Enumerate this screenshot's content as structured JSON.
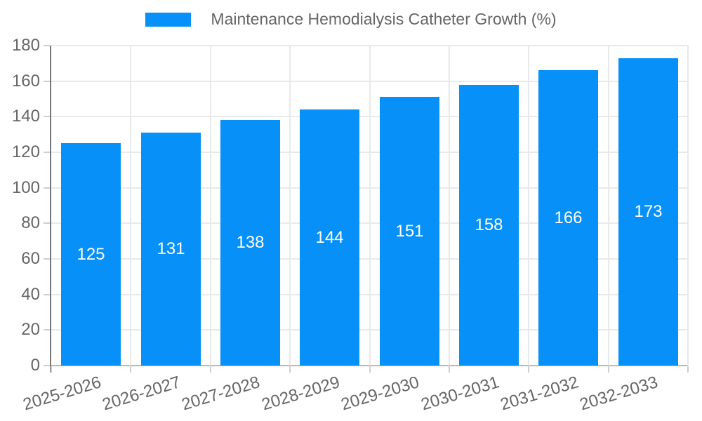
{
  "chart_data": {
    "type": "bar",
    "title": "Maintenance Hemodialysis Catheter Growth (%)",
    "legend_position": "top",
    "categories": [
      "2025-2026",
      "2026-2027",
      "2027-2028",
      "2028-2029",
      "2029-2030",
      "2030-2031",
      "2031-2032",
      "2032-2033"
    ],
    "series": [
      {
        "name": "Maintenance Hemodialysis Catheter Growth (%)",
        "values": [
          125,
          131,
          138,
          144,
          151,
          158,
          166,
          173
        ]
      }
    ],
    "value_labels": [
      "125",
      "131",
      "138",
      "144",
      "151",
      "158",
      "166",
      "173"
    ],
    "ytick_labels": [
      "0",
      "20",
      "40",
      "60",
      "80",
      "100",
      "120",
      "140",
      "160",
      "180"
    ],
    "xlabel": "",
    "ylabel": "",
    "ylim": [
      0,
      180
    ],
    "ytick_step": 20,
    "grid": true,
    "x_label_rotation_deg": -17,
    "colors": {
      "bar": "#0690f8",
      "grid": "#e9e9e9",
      "y_axis_line": "#757575",
      "baseline": "#b8b8b8",
      "tick_mark": "#cfcfcf",
      "tick_text": "#666666",
      "legend_text": "#666666",
      "value_text": "#ffffff",
      "background": "#ffffff"
    }
  }
}
